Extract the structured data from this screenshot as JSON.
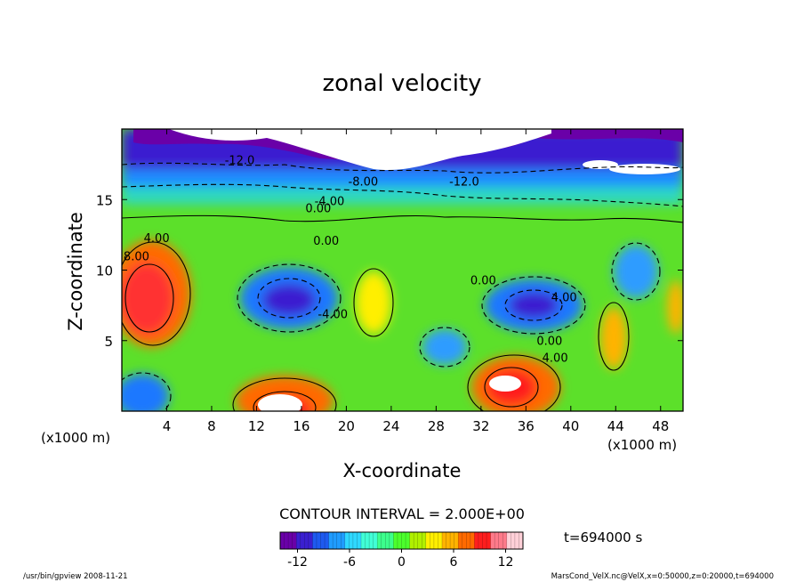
{
  "chart_data": {
    "type": "heatmap",
    "title": "zonal velocity",
    "xlabel": "X-coordinate",
    "ylabel": "Z-coordinate",
    "x_unit_left": "(x1000 m)",
    "x_unit_right": "(x1000 m)",
    "xlim": [
      0,
      50
    ],
    "ylim": [
      0,
      20
    ],
    "x_ticks": [
      "4",
      "8",
      "12",
      "16",
      "20",
      "24",
      "28",
      "32",
      "36",
      "40",
      "44",
      "48"
    ],
    "x_tick_values": [
      4,
      8,
      12,
      16,
      20,
      24,
      28,
      32,
      36,
      40,
      44,
      48
    ],
    "y_ticks": [
      "5",
      "10",
      "15"
    ],
    "y_tick_values": [
      5,
      10,
      15
    ],
    "contour_interval_text": "CONTOUR INTERVAL = 2.000E+00",
    "time_label": "t=694000 s",
    "colorbar": {
      "ticks": [
        "-12",
        "-6",
        "0",
        "6",
        "12"
      ],
      "tick_values": [
        -12,
        -6,
        0,
        6,
        12
      ],
      "range": [
        -14,
        14
      ],
      "colors": [
        "#6a00a8",
        "#3a1fd0",
        "#1e5af0",
        "#1f9cff",
        "#2fd8ff",
        "#40ffd6",
        "#3cff8c",
        "#4cff2c",
        "#b0f000",
        "#ffef00",
        "#ffb300",
        "#ff6a00",
        "#ff1e1e",
        "#ff7a8a",
        "#ffd0d8"
      ]
    },
    "contour_labels": [
      {
        "text": "-12.0",
        "x": 10.5,
        "z": 17.5
      },
      {
        "text": "-8.00",
        "x": 21.5,
        "z": 16.0
      },
      {
        "text": "-12.0",
        "x": 30.5,
        "z": 16.0
      },
      {
        "text": "-4.00",
        "x": 18.5,
        "z": 14.6
      },
      {
        "text": "0.00",
        "x": 17.5,
        "z": 14.1
      },
      {
        "text": "4.00",
        "x": 3.1,
        "z": 12.0
      },
      {
        "text": "8.00",
        "x": 1.3,
        "z": 10.7
      },
      {
        "text": "0.00",
        "x": 18.2,
        "z": 11.8
      },
      {
        "text": "-4.00",
        "x": 18.8,
        "z": 6.6
      },
      {
        "text": "0.00",
        "x": 32.2,
        "z": 9.0
      },
      {
        "text": "4.00",
        "x": 39.4,
        "z": 7.8
      },
      {
        "text": "0.00",
        "x": 38.1,
        "z": 4.7
      },
      {
        "text": "4.00",
        "x": 38.6,
        "z": 3.5
      }
    ]
  },
  "footer": {
    "left": "/usr/bin/gpview  2008-11-21",
    "right": "MarsCond_VelX.nc@VelX,x=0:50000,z=0:20000,t=694000"
  }
}
